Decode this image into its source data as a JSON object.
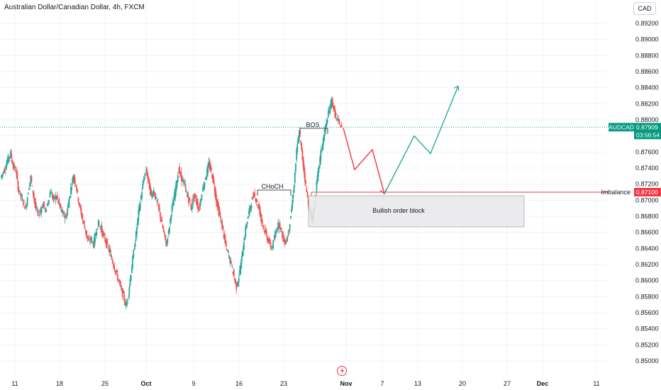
{
  "header": {
    "title": "Australian Dollar/Canadian Dollar, 4h, FXCM",
    "currency_button": "CAD"
  },
  "colors": {
    "up": "#26a69a",
    "down": "#ef5350",
    "projection_down": "#f23645",
    "projection_up": "#22ab94",
    "current_price": "#089981",
    "imbalance": "#f23645"
  },
  "chart_data": {
    "type": "candlestick",
    "title": "Australian Dollar/Canadian Dollar, 4h, FXCM",
    "xlabel": "",
    "ylabel": "",
    "ylim": [
      0.8485,
      0.8935
    ],
    "y_ticks": [
      "0.89200",
      "0.89000",
      "0.88800",
      "0.88600",
      "0.88400",
      "0.88200",
      "0.88000",
      "0.87800",
      "0.87600",
      "0.87400",
      "0.87200",
      "0.87000",
      "0.86800",
      "0.86600",
      "0.86400",
      "0.86200",
      "0.86000",
      "0.85800",
      "0.85600",
      "0.85400",
      "0.85200",
      "0.85000"
    ],
    "x_ticks": [
      "11",
      "18",
      "25",
      "Oct",
      "9",
      "16",
      "23",
      "Nov",
      "7",
      "13",
      "20",
      "27",
      "Dec",
      "11"
    ],
    "price_path": [
      [
        0,
        0.8728
      ],
      [
        0.02,
        0.8735
      ],
      [
        0.04,
        0.8742
      ],
      [
        0.06,
        0.8752
      ],
      [
        0.08,
        0.8758
      ],
      [
        0.1,
        0.8742
      ],
      [
        0.12,
        0.8738
      ],
      [
        0.14,
        0.8715
      ],
      [
        0.16,
        0.8705
      ],
      [
        0.18,
        0.8698
      ],
      [
        0.2,
        0.869
      ],
      [
        0.22,
        0.8712
      ],
      [
        0.24,
        0.8728
      ],
      [
        0.26,
        0.8708
      ],
      [
        0.28,
        0.869
      ],
      [
        0.3,
        0.8682
      ],
      [
        0.32,
        0.8688
      ],
      [
        0.34,
        0.8695
      ],
      [
        0.36,
        0.8685
      ],
      [
        0.38,
        0.87
      ],
      [
        0.4,
        0.8712
      ],
      [
        0.42,
        0.87
      ],
      [
        0.44,
        0.8705
      ],
      [
        0.46,
        0.8698
      ],
      [
        0.48,
        0.8688
      ],
      [
        0.5,
        0.8682
      ],
      [
        0.52,
        0.8678
      ],
      [
        0.54,
        0.8695
      ],
      [
        0.56,
        0.8715
      ],
      [
        0.58,
        0.873
      ],
      [
        0.6,
        0.872
      ],
      [
        0.62,
        0.87
      ],
      [
        0.64,
        0.8685
      ],
      [
        0.66,
        0.8672
      ],
      [
        0.68,
        0.866
      ],
      [
        0.7,
        0.8648
      ],
      [
        0.72,
        0.8652
      ],
      [
        0.74,
        0.8645
      ],
      [
        0.76,
        0.866
      ],
      [
        0.78,
        0.8672
      ],
      [
        0.8,
        0.8665
      ],
      [
        0.82,
        0.8655
      ],
      [
        0.84,
        0.8648
      ],
      [
        0.86,
        0.864
      ],
      [
        0.88,
        0.863
      ],
      [
        0.9,
        0.862
      ],
      [
        0.92,
        0.861
      ],
      [
        0.94,
        0.86
      ],
      [
        0.96,
        0.859
      ],
      [
        0.98,
        0.858
      ],
      [
        1.0,
        0.8568
      ],
      [
        1.02,
        0.8585
      ],
      [
        1.04,
        0.861
      ],
      [
        1.06,
        0.8635
      ],
      [
        1.08,
        0.8658
      ],
      [
        1.1,
        0.8685
      ],
      [
        1.12,
        0.8705
      ],
      [
        1.14,
        0.8725
      ],
      [
        1.16,
        0.8738
      ],
      [
        1.18,
        0.8722
      ],
      [
        1.2,
        0.8705
      ],
      [
        1.22,
        0.8712
      ],
      [
        1.24,
        0.87
      ],
      [
        1.26,
        0.869
      ],
      [
        1.28,
        0.8675
      ],
      [
        1.3,
        0.866
      ],
      [
        1.32,
        0.8645
      ],
      [
        1.34,
        0.866
      ],
      [
        1.36,
        0.8685
      ],
      [
        1.38,
        0.87
      ],
      [
        1.4,
        0.872
      ],
      [
        1.42,
        0.8738
      ],
      [
        1.44,
        0.8728
      ],
      [
        1.46,
        0.8722
      ],
      [
        1.48,
        0.871
      ],
      [
        1.5,
        0.87
      ],
      [
        1.52,
        0.869
      ],
      [
        1.54,
        0.8705
      ],
      [
        1.56,
        0.87
      ],
      [
        1.58,
        0.8688
      ],
      [
        1.6,
        0.8705
      ],
      [
        1.62,
        0.872
      ],
      [
        1.64,
        0.8732
      ],
      [
        1.66,
        0.8745
      ],
      [
        1.68,
        0.8735
      ],
      [
        1.7,
        0.872
      ],
      [
        1.72,
        0.87
      ],
      [
        1.74,
        0.8685
      ],
      [
        1.76,
        0.8672
      ],
      [
        1.78,
        0.8655
      ],
      [
        1.8,
        0.864
      ],
      [
        1.82,
        0.863
      ],
      [
        1.84,
        0.862
      ],
      [
        1.86,
        0.8605
      ],
      [
        1.88,
        0.8592
      ],
      [
        1.9,
        0.8605
      ],
      [
        1.92,
        0.8625
      ],
      [
        1.94,
        0.865
      ],
      [
        1.96,
        0.867
      ],
      [
        1.98,
        0.8685
      ],
      [
        2.0,
        0.8698
      ],
      [
        2.02,
        0.8708
      ],
      [
        2.04,
        0.87
      ],
      [
        2.06,
        0.869
      ],
      [
        2.08,
        0.8675
      ],
      [
        2.1,
        0.8665
      ],
      [
        2.12,
        0.8655
      ],
      [
        2.14,
        0.8648
      ],
      [
        2.16,
        0.864
      ],
      [
        2.18,
        0.865
      ],
      [
        2.2,
        0.8665
      ],
      [
        2.22,
        0.8672
      ],
      [
        2.24,
        0.866
      ],
      [
        2.26,
        0.8648
      ],
      [
        2.28,
        0.865
      ],
      [
        2.3,
        0.8665
      ],
      [
        2.32,
        0.869
      ],
      [
        2.34,
        0.872
      ],
      [
        2.36,
        0.876
      ],
      [
        2.38,
        0.8785
      ],
      [
        2.4,
        0.876
      ],
      [
        2.42,
        0.8735
      ],
      [
        2.44,
        0.871
      ],
      [
        2.46,
        0.869
      ],
      [
        2.48,
        0.8675
      ],
      [
        2.5,
        0.869
      ],
      [
        2.52,
        0.872
      ],
      [
        2.54,
        0.8745
      ],
      [
        2.56,
        0.8765
      ],
      [
        2.58,
        0.8782
      ],
      [
        2.6,
        0.8798
      ],
      [
        2.62,
        0.8812
      ],
      [
        2.64,
        0.8825
      ],
      [
        2.66,
        0.881
      ],
      [
        2.68,
        0.88
      ],
      [
        2.7,
        0.8795
      ],
      [
        2.72,
        0.879
      ]
    ],
    "price_range": [
      0.8568,
      0.8835
    ],
    "current_price": "0.87909",
    "countdown": "03:56:54",
    "symbol_label": "AUDCAD",
    "imbalance_price": "0.87100",
    "annotations": {
      "choch": "CHoCH",
      "bos": "BOS",
      "order_block": "Bullish order block",
      "imbalance": "Imbalance"
    },
    "projection_down": [
      [
        0,
        0.879
      ],
      [
        1,
        0.8738
      ],
      [
        2,
        0.8763
      ],
      [
        3,
        0.8708
      ]
    ],
    "projection_up": [
      [
        3,
        0.8708
      ],
      [
        4,
        0.878
      ],
      [
        5,
        0.8758
      ],
      [
        6,
        0.8842
      ]
    ]
  },
  "footer": {
    "replay_icon": "lightning-icon"
  }
}
